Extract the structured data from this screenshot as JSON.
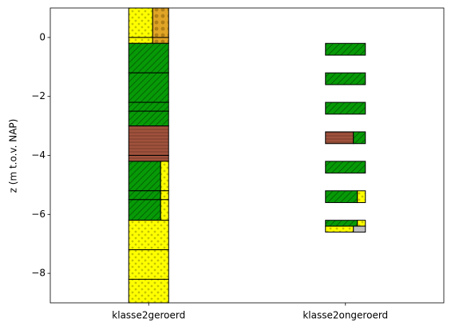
{
  "chart_data": {
    "type": "layers",
    "ylabel": "z (m t.o.v. NAP)",
    "categories": [
      "klasse2geroerd",
      "klasse2ongeroerd"
    ],
    "ylim": [
      -9,
      1
    ],
    "yticks": [
      {
        "value": -8,
        "label": "−8"
      },
      {
        "value": -6,
        "label": "−6"
      },
      {
        "value": -4,
        "label": "−4"
      },
      {
        "value": -2,
        "label": "−2"
      },
      0
    ],
    "columns": [
      {
        "layers": [
          {
            "top": 1.0,
            "bottom": 0.0,
            "parts": [
              {
                "fraction": 0.6,
                "color": "#ffff00",
                "hatch": "dots"
              },
              {
                "fraction": 0.4,
                "color": "#e0a526",
                "hatch": "bigdots"
              }
            ]
          },
          {
            "top": 0.0,
            "bottom": -0.2,
            "parts": [
              {
                "fraction": 0.6,
                "color": "#ffff00",
                "hatch": "dots"
              },
              {
                "fraction": 0.4,
                "color": "#e0a526",
                "hatch": "bigdots"
              }
            ]
          },
          {
            "top": -0.2,
            "bottom": -1.2,
            "parts": [
              {
                "fraction": 1,
                "color": "#079a07",
                "hatch": "diag"
              }
            ]
          },
          {
            "top": -1.2,
            "bottom": -2.2,
            "parts": [
              {
                "fraction": 1,
                "color": "#079a07",
                "hatch": "diag"
              }
            ]
          },
          {
            "top": -2.2,
            "bottom": -2.5,
            "parts": [
              {
                "fraction": 1,
                "color": "#079a07",
                "hatch": "diag"
              }
            ]
          },
          {
            "top": -2.5,
            "bottom": -3.0,
            "parts": [
              {
                "fraction": 1,
                "color": "#079a07",
                "hatch": "diag"
              }
            ]
          },
          {
            "top": -3.0,
            "bottom": -4.0,
            "parts": [
              {
                "fraction": 1,
                "color": "#a0523c",
                "hatch": "horiz"
              }
            ]
          },
          {
            "top": -4.0,
            "bottom": -4.2,
            "parts": [
              {
                "fraction": 1,
                "color": "#a0523c",
                "hatch": "horiz"
              }
            ]
          },
          {
            "top": -4.2,
            "bottom": -5.2,
            "parts": [
              {
                "fraction": 0.8,
                "color": "#079a07",
                "hatch": "diag"
              },
              {
                "fraction": 0.2,
                "color": "#ffff00",
                "hatch": "dots"
              }
            ]
          },
          {
            "top": -5.2,
            "bottom": -5.5,
            "parts": [
              {
                "fraction": 0.8,
                "color": "#079a07",
                "hatch": "diag"
              },
              {
                "fraction": 0.2,
                "color": "#ffff00",
                "hatch": "dots"
              }
            ]
          },
          {
            "top": -5.5,
            "bottom": -6.2,
            "parts": [
              {
                "fraction": 0.8,
                "color": "#079a07",
                "hatch": "diag"
              },
              {
                "fraction": 0.2,
                "color": "#ffff00",
                "hatch": "dots"
              }
            ]
          },
          {
            "top": -6.2,
            "bottom": -7.2,
            "parts": [
              {
                "fraction": 1,
                "color": "#ffff00",
                "hatch": "dots"
              }
            ]
          },
          {
            "top": -7.2,
            "bottom": -8.2,
            "parts": [
              {
                "fraction": 1,
                "color": "#ffff00",
                "hatch": "dots"
              }
            ]
          },
          {
            "top": -8.2,
            "bottom": -9.0,
            "parts": [
              {
                "fraction": 1,
                "color": "#ffff00",
                "hatch": "dots"
              }
            ]
          }
        ]
      },
      {
        "layers": [
          {
            "top": -0.2,
            "bottom": -0.6,
            "parts": [
              {
                "fraction": 1,
                "color": "#079a07",
                "hatch": "diag"
              }
            ]
          },
          {
            "top": -1.2,
            "bottom": -1.6,
            "parts": [
              {
                "fraction": 1,
                "color": "#079a07",
                "hatch": "diag"
              }
            ]
          },
          {
            "top": -2.2,
            "bottom": -2.6,
            "parts": [
              {
                "fraction": 1,
                "color": "#079a07",
                "hatch": "diag"
              }
            ]
          },
          {
            "top": -3.2,
            "bottom": -3.6,
            "parts": [
              {
                "fraction": 0.7,
                "color": "#a0523c",
                "hatch": "horiz"
              },
              {
                "fraction": 0.3,
                "color": "#079a07",
                "hatch": "diag"
              }
            ]
          },
          {
            "top": -4.2,
            "bottom": -4.6,
            "parts": [
              {
                "fraction": 1,
                "color": "#079a07",
                "hatch": "diag"
              }
            ]
          },
          {
            "top": -5.2,
            "bottom": -5.6,
            "parts": [
              {
                "fraction": 0.8,
                "color": "#079a07",
                "hatch": "diag"
              },
              {
                "fraction": 0.2,
                "color": "#ffff00",
                "hatch": "dots"
              }
            ]
          },
          {
            "top": -6.2,
            "bottom": -6.4,
            "parts": [
              {
                "fraction": 0.8,
                "color": "#079a07",
                "hatch": "diag"
              },
              {
                "fraction": 0.2,
                "color": "#ffff00",
                "hatch": "dots"
              }
            ]
          },
          {
            "top": -6.4,
            "bottom": -6.6,
            "parts": [
              {
                "fraction": 0.7,
                "color": "#ffff00",
                "hatch": "dots"
              },
              {
                "fraction": 0.3,
                "color": "#c0c0c0",
                "hatch": "none"
              }
            ]
          }
        ]
      }
    ]
  }
}
